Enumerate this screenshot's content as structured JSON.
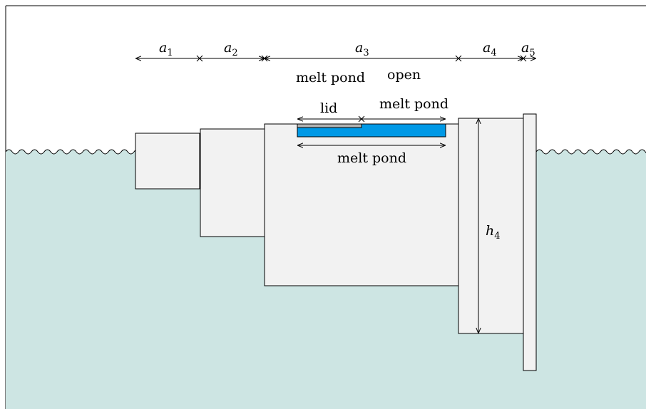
{
  "colors": {
    "water": "#cde5e3",
    "ice": "#f2f2f2",
    "pond": "#0099e6",
    "lid": "#b3b3b3",
    "stroke": "#000000"
  },
  "widths": [
    {
      "symbol": "a",
      "index": "1"
    },
    {
      "symbol": "a",
      "index": "2"
    },
    {
      "symbol": "a",
      "index": "3"
    },
    {
      "symbol": "a",
      "index": "4"
    },
    {
      "symbol": "a",
      "index": "5"
    }
  ],
  "height": {
    "symbol": "h",
    "index": "4"
  },
  "labels": {
    "melt_pond_upper": "melt pond",
    "open": "open",
    "lid": "lid",
    "melt_pond_open": "melt pond",
    "melt_pond_lower": "melt pond"
  }
}
